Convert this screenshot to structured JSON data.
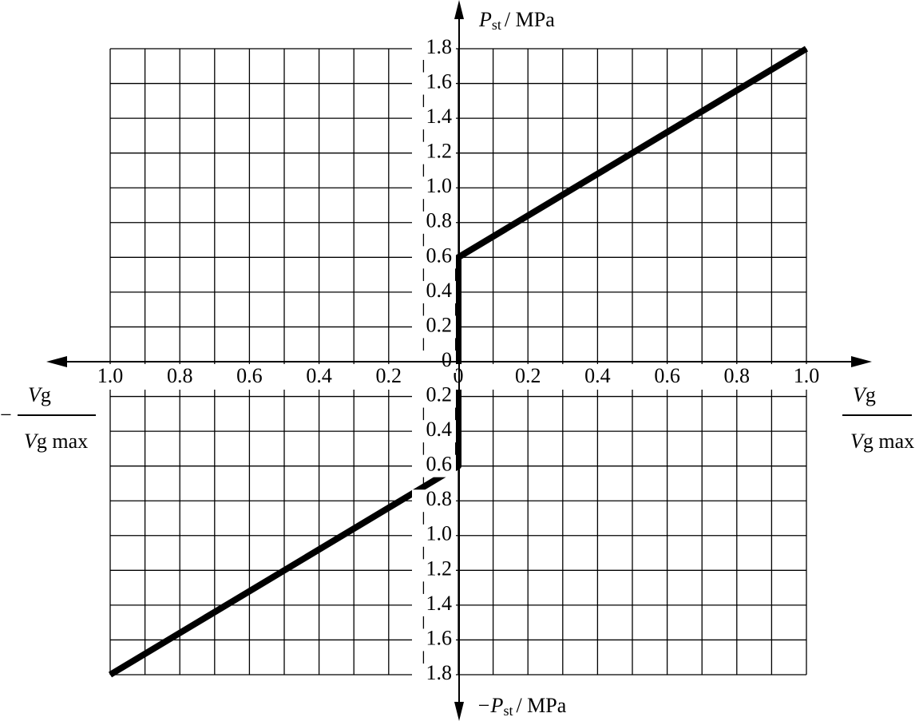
{
  "chart_data": {
    "type": "line",
    "y_label": [
      "P",
      "st",
      "/ MPa"
    ],
    "y_neg_label": [
      "−P",
      "st",
      "/ MPa"
    ],
    "x_label": {
      "numerator": [
        "V",
        "g"
      ],
      "denominator": [
        "V",
        "g max"
      ]
    },
    "x_neg_label": {
      "sign": "−",
      "numerator": [
        "V",
        "g"
      ],
      "denominator": [
        "V",
        "g max"
      ]
    },
    "xlim": [
      -1,
      1
    ],
    "ylim": [
      -1.8,
      1.8
    ],
    "xticks": [
      {
        "value": -1,
        "label": "1.0"
      },
      {
        "value": -0.8,
        "label": "0.8"
      },
      {
        "value": -0.6,
        "label": "0.6"
      },
      {
        "value": -0.4,
        "label": "0.4"
      },
      {
        "value": -0.2,
        "label": "0.2"
      },
      0,
      0.2,
      0.4,
      0.6,
      0.8,
      {
        "value": 1,
        "label": "1.0"
      }
    ],
    "x_minor_grid": [
      -0.9,
      -0.7,
      -0.5,
      -0.3,
      -0.1,
      0.1,
      0.3,
      0.5,
      0.7,
      0.9
    ],
    "yticks": [
      1.8,
      1.6,
      1.4,
      1.2,
      {
        "value": 1,
        "label": "1.0"
      },
      0.8,
      0.6,
      0.4,
      0.2,
      0,
      {
        "value": -0.2,
        "label": "0.2"
      },
      {
        "value": -0.4,
        "label": "0.4"
      },
      {
        "value": -0.6,
        "label": "0.6"
      },
      {
        "value": -0.8,
        "label": "0.8"
      },
      {
        "value": -1,
        "label": "1.0"
      },
      {
        "value": -1.2,
        "label": "1.2"
      },
      {
        "value": -1.4,
        "label": "1.4"
      },
      {
        "value": -1.6,
        "label": "1.6"
      },
      {
        "value": -1.8,
        "label": "1.8"
      }
    ],
    "grid": true,
    "series": [
      {
        "color": "#000000",
        "x": [
          0,
          0,
          1
        ],
        "values": [
          0,
          0.6,
          1.8
        ]
      },
      {
        "color": "#000000",
        "x": [
          0,
          0,
          -1
        ],
        "values": [
          0,
          -0.6,
          -1.8
        ]
      }
    ]
  }
}
